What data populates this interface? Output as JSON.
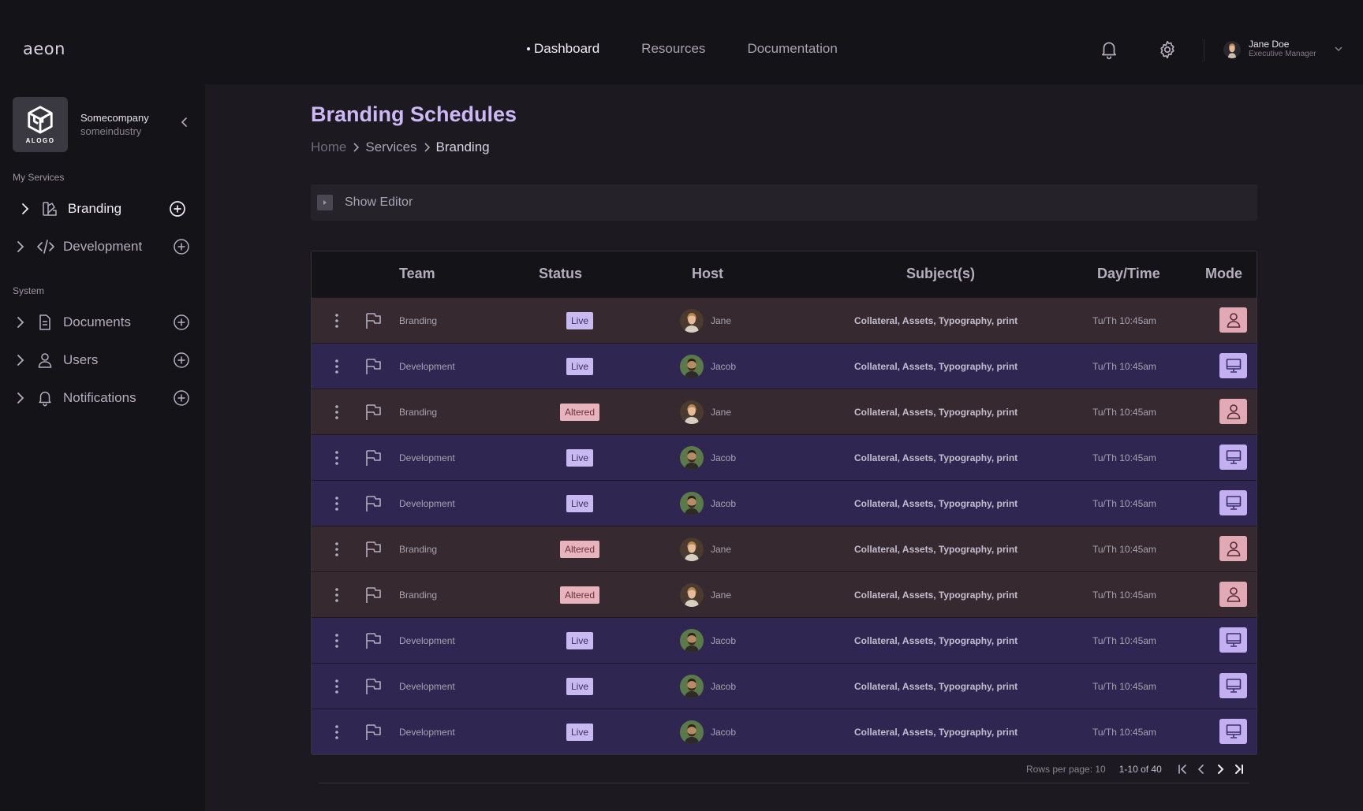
{
  "header": {
    "logo_text": "aeon",
    "nav": [
      {
        "label": "Dashboard",
        "active": true
      },
      {
        "label": "Resources",
        "active": false
      },
      {
        "label": "Documentation",
        "active": false
      }
    ],
    "user": {
      "name": "Jane Doe",
      "role": "Executive Manager"
    }
  },
  "sidebar": {
    "company": {
      "logo_text": "ALOGO",
      "name": "Somecompany",
      "industry": "someindustry"
    },
    "sections": [
      {
        "label": "My Services",
        "items": [
          {
            "label": "Branding",
            "icon": "palette-icon",
            "active": true
          },
          {
            "label": "Development",
            "icon": "code-icon",
            "active": false
          }
        ]
      },
      {
        "label": "System",
        "items": [
          {
            "label": "Documents",
            "icon": "document-icon",
            "active": false
          },
          {
            "label": "Users",
            "icon": "user-icon",
            "active": false
          },
          {
            "label": "Notifications",
            "icon": "bell-icon",
            "active": false
          }
        ]
      }
    ]
  },
  "main": {
    "title": "Branding Schedules",
    "breadcrumb": [
      "Home",
      "Services",
      "Branding"
    ],
    "editor_label": "Show Editor",
    "table": {
      "columns": [
        "Team",
        "Status",
        "Host",
        "Subject(s)",
        "Day/Time",
        "Mode"
      ],
      "rows": [
        {
          "team": "Branding",
          "status": "Live",
          "host": "Jane",
          "subjects": "Collateral, Assets, Typography, print",
          "time": "Tu/Th 10:45am",
          "mode": "in-person"
        },
        {
          "team": "Development",
          "status": "Live",
          "host": "Jacob",
          "subjects": "Collateral, Assets, Typography, print",
          "time": "Tu/Th 10:45am",
          "mode": "virtual"
        },
        {
          "team": "Branding",
          "status": "Altered",
          "host": "Jane",
          "subjects": "Collateral, Assets, Typography, print",
          "time": "Tu/Th 10:45am",
          "mode": "in-person"
        },
        {
          "team": "Development",
          "status": "Live",
          "host": "Jacob",
          "subjects": "Collateral, Assets, Typography, print",
          "time": "Tu/Th 10:45am",
          "mode": "virtual"
        },
        {
          "team": "Development",
          "status": "Live",
          "host": "Jacob",
          "subjects": "Collateral, Assets, Typography, print",
          "time": "Tu/Th 10:45am",
          "mode": "virtual"
        },
        {
          "team": "Branding",
          "status": "Altered",
          "host": "Jane",
          "subjects": "Collateral, Assets, Typography, print",
          "time": "Tu/Th 10:45am",
          "mode": "in-person"
        },
        {
          "team": "Branding",
          "status": "Altered",
          "host": "Jane",
          "subjects": "Collateral, Assets, Typography, print",
          "time": "Tu/Th 10:45am",
          "mode": "in-person"
        },
        {
          "team": "Development",
          "status": "Live",
          "host": "Jacob",
          "subjects": "Collateral, Assets, Typography, print",
          "time": "Tu/Th 10:45am",
          "mode": "virtual"
        },
        {
          "team": "Development",
          "status": "Live",
          "host": "Jacob",
          "subjects": "Collateral, Assets, Typography, print",
          "time": "Tu/Th 10:45am",
          "mode": "virtual"
        },
        {
          "team": "Development",
          "status": "Live",
          "host": "Jacob",
          "subjects": "Collateral, Assets, Typography, print",
          "time": "Tu/Th 10:45am",
          "mode": "virtual"
        }
      ]
    },
    "pagination": {
      "rows_per_page": "Rows per page: 10",
      "range": "1-10 of 40"
    }
  },
  "colors": {
    "accent": "#cbb8f5",
    "branding_row": "#362930",
    "development_row": "#2f2751",
    "live_badge": "#c8b9f0",
    "altered_badge": "#e7b4bd"
  }
}
